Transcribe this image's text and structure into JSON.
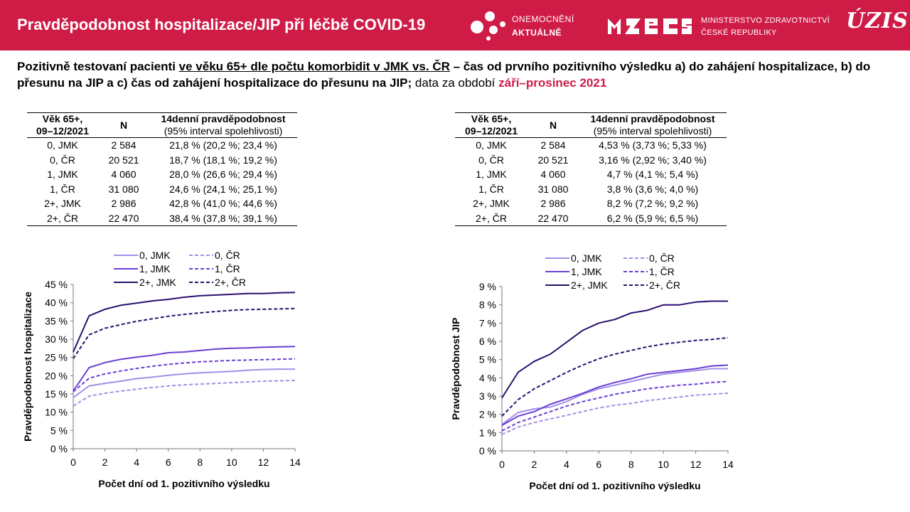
{
  "header": {
    "title": "Pravděpodobnost hospitalizace/JIP při léčbě COVID-19",
    "logo_oa": {
      "line1": "ONEMOCNĚNÍ",
      "line2": "AKTUÁLNĚ"
    },
    "logo_mzcr": {
      "line1": "MINISTERSTVO ZDRAVOTNICTVÍ",
      "line2": "ČESKÉ REPUBLIKY"
    },
    "logo_uzis": "ÚZIS"
  },
  "subtitle": {
    "part1": "Pozitivně testovaní pacienti ",
    "part2_underlined": "ve věku 65+ dle počtu komorbidit v JMK vs. ČR",
    "part3": " – čas od prvního pozitivního výsledku a) do zahájení hospitalizace, b) do přesunu na JIP a c) čas od zahájení hospitalizace do přesunu na JIP;",
    "part4": " data za období ",
    "part5_highlight": "září–prosinec 2021"
  },
  "colors": {
    "brand": "#cf1c47",
    "light": "#a48ee6",
    "mid": "#6a3fd4",
    "dark": "#2a0f6e"
  },
  "tables": [
    {
      "header": {
        "group_line1": "Věk 65+,",
        "group_line2": "09–12/2021",
        "n": "N",
        "prob": "14denní pravděpodobnost",
        "ci": "(95% interval spolehlivosti)"
      },
      "rows": [
        {
          "group": "0, JMK",
          "n": "2 584",
          "prob": "21,8 % (20,2 %; 23,4 %)"
        },
        {
          "group": "0, ČR",
          "n": "20 521",
          "prob": "18,7 % (18,1 %; 19,2 %)"
        },
        {
          "group": "1, JMK",
          "n": "4 060",
          "prob": "28,0 % (26,6 %; 29,4 %)"
        },
        {
          "group": "1, ČR",
          "n": "31 080",
          "prob": "24,6 % (24,1 %; 25,1 %)"
        },
        {
          "group": "2+, JMK",
          "n": "2 986",
          "prob": "42,8 % (41,0 %; 44,6 %)"
        },
        {
          "group": "2+, ČR",
          "n": "22 470",
          "prob": "38,4 % (37,8 %; 39,1 %)"
        }
      ]
    },
    {
      "header": {
        "group_line1": "Věk 65+,",
        "group_line2": "09–12/2021",
        "n": "N",
        "prob": "14denní pravděpodobnost",
        "ci": "(95% interval spolehlivosti)"
      },
      "rows": [
        {
          "group": "0, JMK",
          "n": "2 584",
          "prob": "4,53 % (3,73 %; 5,33 %)"
        },
        {
          "group": "0, ČR",
          "n": "20 521",
          "prob": "3,16 % (2,92 %; 3,40 %)"
        },
        {
          "group": "1, JMK",
          "n": "4 060",
          "prob": "4,7 % (4,1 %; 5,4 %)"
        },
        {
          "group": "1, ČR",
          "n": "31 080",
          "prob": "3,8 % (3,6 %; 4,0 %)"
        },
        {
          "group": "2+, JMK",
          "n": "2 986",
          "prob": "8,2 % (7,2 %; 9,2 %)"
        },
        {
          "group": "2+, ČR",
          "n": "22 470",
          "prob": "6,2 % (5,9 %; 6,5 %)"
        }
      ]
    }
  ],
  "chart_data": [
    {
      "type": "line",
      "ylabel": "Pravděpodobnost hospitalizace",
      "xlabel": "Počet dní od 1. pozitivního výsledku",
      "xlim": [
        0,
        14
      ],
      "ylim": [
        0,
        45
      ],
      "yticks": [
        0,
        5,
        10,
        15,
        20,
        25,
        30,
        35,
        40,
        45
      ],
      "ytick_labels": [
        "0 %",
        "5 %",
        "10 %",
        "15 %",
        "20 %",
        "25 %",
        "30 %",
        "35 %",
        "40 %",
        "45 %"
      ],
      "xticks": [
        0,
        2,
        4,
        6,
        8,
        10,
        12,
        14
      ],
      "xtick_labels": [
        "0",
        "2",
        "4",
        "6",
        "8",
        "10",
        "12",
        "14"
      ],
      "grid": false,
      "legend_position": "top",
      "x": [
        0,
        1,
        2,
        3,
        4,
        5,
        6,
        7,
        8,
        9,
        10,
        11,
        12,
        13,
        14
      ],
      "series": [
        {
          "name": "0, JMK",
          "color": "#a48ee6",
          "dashed": false,
          "values": [
            14.0,
            17.2,
            17.9,
            18.5,
            19.2,
            19.6,
            20.1,
            20.5,
            20.8,
            21.0,
            21.2,
            21.5,
            21.7,
            21.8,
            21.8
          ]
        },
        {
          "name": "0, ČR",
          "color": "#a48ee6",
          "dashed": true,
          "values": [
            11.7,
            14.4,
            15.2,
            15.8,
            16.3,
            16.8,
            17.2,
            17.5,
            17.7,
            17.9,
            18.1,
            18.3,
            18.5,
            18.6,
            18.7
          ]
        },
        {
          "name": "1, JMK",
          "color": "#6a3fd4",
          "dashed": false,
          "values": [
            15.8,
            22.2,
            23.6,
            24.5,
            25.1,
            25.6,
            26.3,
            26.5,
            26.9,
            27.3,
            27.5,
            27.6,
            27.8,
            27.9,
            28.0
          ]
        },
        {
          "name": "1, ČR",
          "color": "#6a3fd4",
          "dashed": true,
          "values": [
            15.6,
            19.3,
            20.5,
            21.3,
            22.0,
            22.6,
            23.1,
            23.5,
            23.8,
            24.0,
            24.2,
            24.3,
            24.4,
            24.5,
            24.6
          ]
        },
        {
          "name": "2+, JMK",
          "color": "#2a0f6e",
          "dashed": false,
          "values": [
            26.5,
            36.4,
            38.2,
            39.3,
            39.9,
            40.5,
            40.9,
            41.5,
            41.9,
            42.1,
            42.3,
            42.5,
            42.5,
            42.7,
            42.8
          ]
        },
        {
          "name": "2+, ČR",
          "color": "#2a0f6e",
          "dashed": true,
          "values": [
            24.7,
            31.2,
            33.0,
            34.0,
            34.9,
            35.6,
            36.3,
            36.8,
            37.2,
            37.6,
            37.9,
            38.1,
            38.2,
            38.3,
            38.4
          ]
        }
      ]
    },
    {
      "type": "line",
      "ylabel": "Pravděpodobnost JIP",
      "xlabel": "Počet dní od 1. pozitivního výsledku",
      "xlim": [
        0,
        14
      ],
      "ylim": [
        0,
        9
      ],
      "yticks": [
        0,
        1,
        2,
        3,
        4,
        5,
        6,
        7,
        8,
        9
      ],
      "ytick_labels": [
        "0 %",
        "1 %",
        "2 %",
        "3 %",
        "4 %",
        "5 %",
        "6 %",
        "7 %",
        "8 %",
        "9 %"
      ],
      "xticks": [
        0,
        2,
        4,
        6,
        8,
        10,
        12,
        14
      ],
      "xtick_labels": [
        "0",
        "2",
        "4",
        "6",
        "8",
        "10",
        "12",
        "14"
      ],
      "grid": false,
      "legend_position": "top",
      "x": [
        0,
        1,
        2,
        3,
        4,
        5,
        6,
        7,
        8,
        9,
        10,
        11,
        12,
        13,
        14
      ],
      "series": [
        {
          "name": "0, JMK",
          "color": "#a48ee6",
          "dashed": false,
          "values": [
            1.45,
            2.1,
            2.3,
            2.4,
            2.7,
            3.1,
            3.4,
            3.6,
            3.8,
            4.0,
            4.2,
            4.3,
            4.4,
            4.5,
            4.5
          ]
        },
        {
          "name": "0, ČR",
          "color": "#a48ee6",
          "dashed": true,
          "values": [
            0.9,
            1.3,
            1.55,
            1.75,
            1.95,
            2.15,
            2.35,
            2.5,
            2.6,
            2.75,
            2.85,
            2.95,
            3.05,
            3.1,
            3.16
          ]
        },
        {
          "name": "1, JMK",
          "color": "#6a3fd4",
          "dashed": false,
          "values": [
            1.4,
            1.9,
            2.15,
            2.55,
            2.85,
            3.15,
            3.5,
            3.75,
            3.95,
            4.2,
            4.3,
            4.4,
            4.5,
            4.65,
            4.7
          ]
        },
        {
          "name": "1, ČR",
          "color": "#6a3fd4",
          "dashed": true,
          "values": [
            1.1,
            1.55,
            1.85,
            2.15,
            2.45,
            2.7,
            2.9,
            3.1,
            3.25,
            3.4,
            3.5,
            3.6,
            3.65,
            3.75,
            3.8
          ]
        },
        {
          "name": "2+, JMK",
          "color": "#2a0f6e",
          "dashed": false,
          "values": [
            2.9,
            4.3,
            4.9,
            5.3,
            5.95,
            6.6,
            7.0,
            7.2,
            7.55,
            7.7,
            8.0,
            8.0,
            8.15,
            8.2,
            8.2
          ]
        },
        {
          "name": "2+, ČR",
          "color": "#2a0f6e",
          "dashed": true,
          "values": [
            1.9,
            2.8,
            3.4,
            3.85,
            4.3,
            4.7,
            5.05,
            5.3,
            5.5,
            5.7,
            5.85,
            5.95,
            6.05,
            6.1,
            6.2
          ]
        }
      ]
    }
  ]
}
